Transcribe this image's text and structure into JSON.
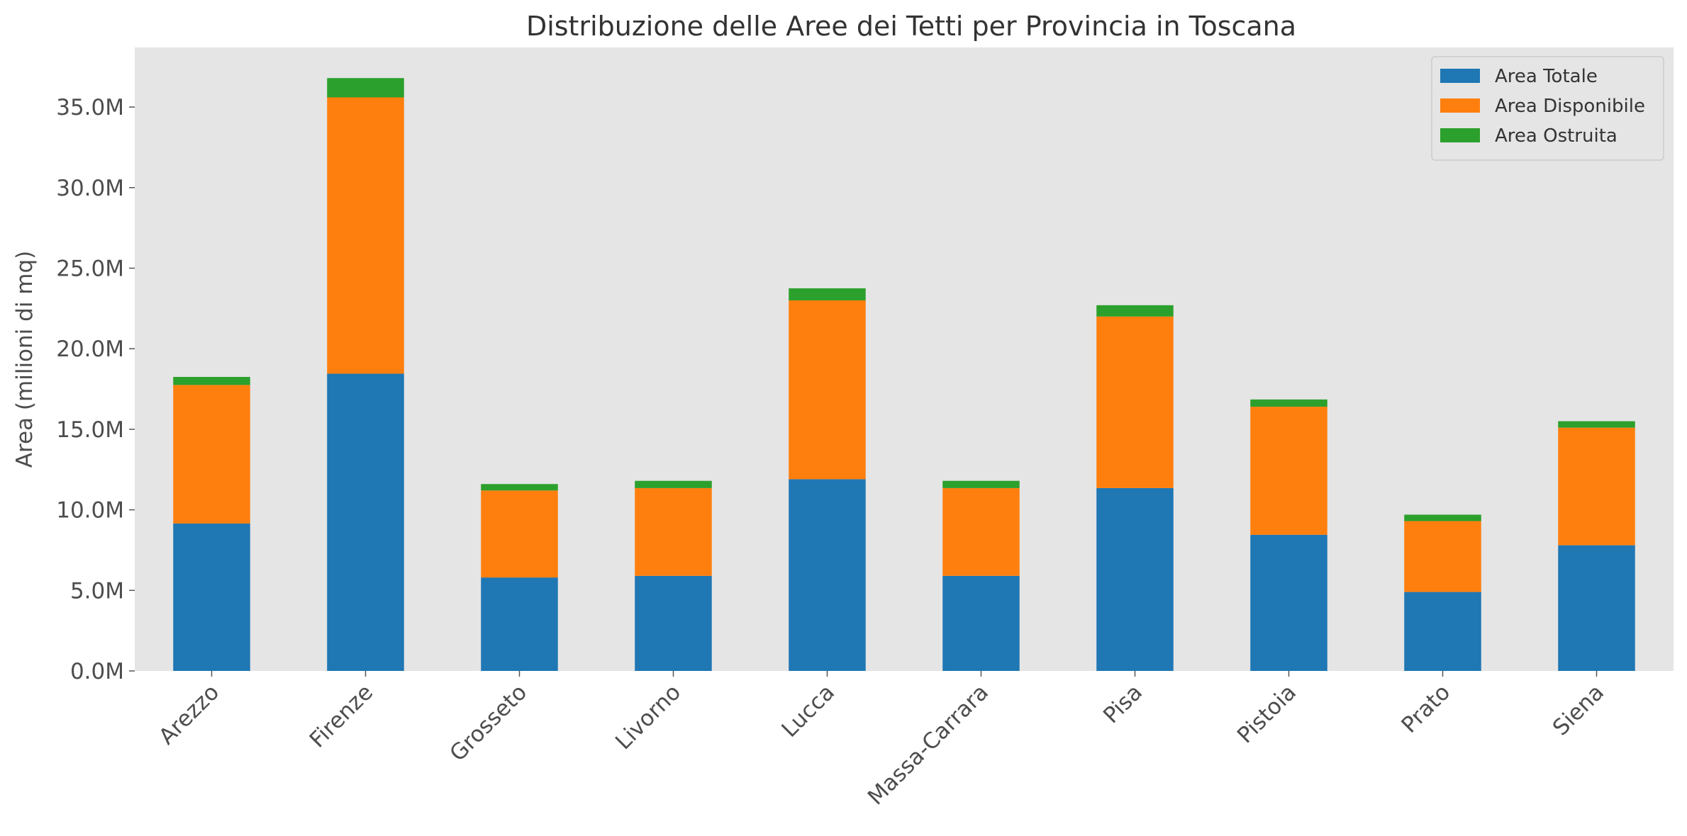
{
  "chart_data": {
    "type": "bar",
    "stacked": true,
    "title": "Distribuzione delle Aree dei Tetti per Provincia in Toscana",
    "xlabel": "",
    "ylabel": "Area (milioni di mq)",
    "ylim": [
      0,
      38.7
    ],
    "yticks": [
      0,
      5,
      10,
      15,
      20,
      25,
      30,
      35
    ],
    "ytick_labels": [
      "0.0M",
      "5.0M",
      "10.0M",
      "15.0M",
      "20.0M",
      "25.0M",
      "30.0M",
      "35.0M"
    ],
    "categories": [
      "Arezzo",
      "Firenze",
      "Grosseto",
      "Livorno",
      "Lucca",
      "Massa-Carrara",
      "Pisa",
      "Pistoia",
      "Prato",
      "Siena"
    ],
    "series": [
      {
        "name": "Area Totale",
        "color": "#1f77b4",
        "values": [
          9.15,
          18.45,
          5.8,
          5.9,
          11.9,
          5.9,
          11.35,
          8.45,
          4.9,
          7.8
        ]
      },
      {
        "name": "Area Disponibile",
        "color": "#ff7f0e",
        "values": [
          8.6,
          17.15,
          5.4,
          5.45,
          11.1,
          5.45,
          10.65,
          7.95,
          4.4,
          7.3
        ]
      },
      {
        "name": "Area Ostruita",
        "color": "#2ca02c",
        "values": [
          0.5,
          1.2,
          0.4,
          0.45,
          0.75,
          0.45,
          0.7,
          0.45,
          0.4,
          0.4
        ]
      }
    ],
    "grid": false,
    "legend_position": "top-right",
    "background_color": "#e5e5e5"
  }
}
